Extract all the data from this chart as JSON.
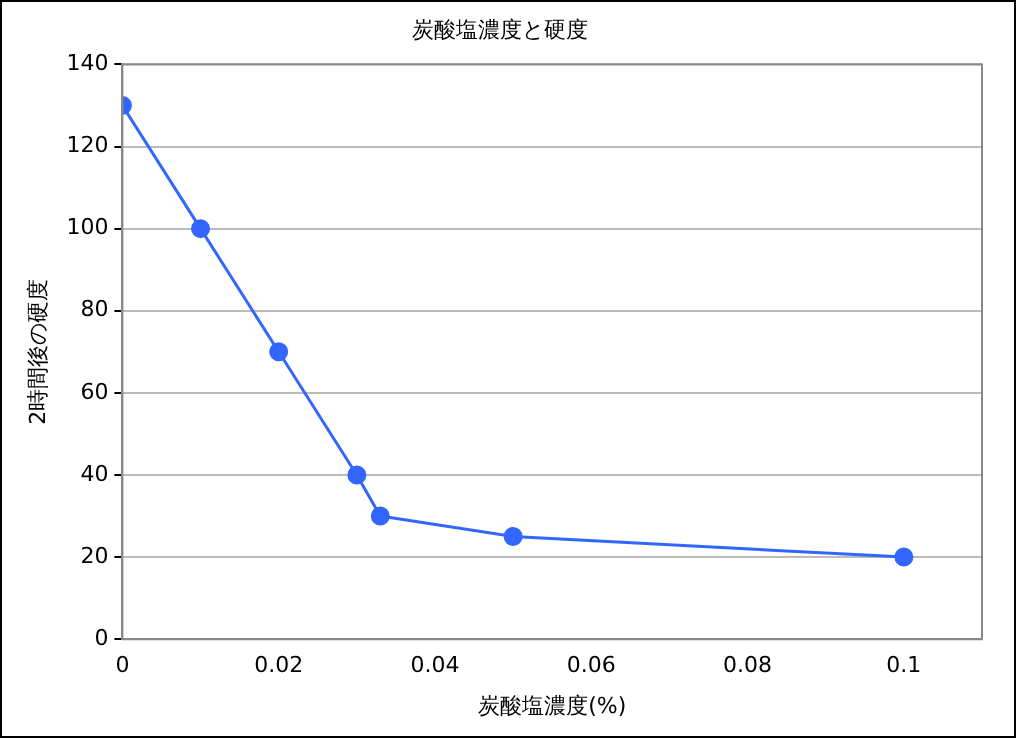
{
  "chart_data": {
    "type": "line",
    "title": "炭酸塩濃度と硬度",
    "xlabel": "炭酸塩濃度(%)",
    "ylabel": "2時間後の硬度",
    "x": [
      0,
      0.01,
      0.02,
      0.03,
      0.033,
      0.05,
      0.1
    ],
    "series": [
      {
        "color": "#3366ff",
        "values": [
          130,
          100,
          70,
          40,
          30,
          25,
          20
        ]
      }
    ],
    "xlim": [
      0,
      0.11
    ],
    "xticks": [
      0,
      0.02,
      0.04,
      0.06,
      0.08,
      0.1
    ],
    "ylim": [
      0,
      140
    ],
    "yticks": [
      0,
      20,
      40,
      60,
      80,
      100,
      120,
      140
    ],
    "grid": "y",
    "legend": false,
    "marker": "circle",
    "line_style": "solid"
  }
}
